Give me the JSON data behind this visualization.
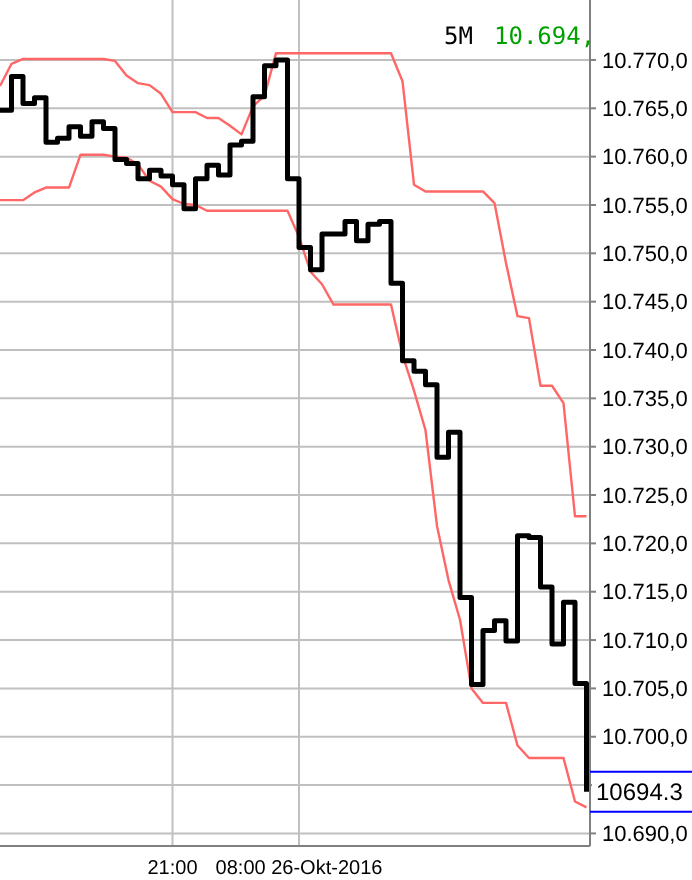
{
  "chart_data": {
    "type": "step",
    "title": "5M",
    "subtitle": "10.694,",
    "categories": [
      null,
      null,
      null,
      null,
      null,
      null,
      null,
      null,
      null,
      null,
      null,
      null,
      null,
      null,
      null,
      "21:00",
      null,
      null,
      null,
      null,
      null,
      null,
      null,
      null,
      null,
      null,
      "08:00 26-Okt-2016",
      null,
      null,
      null,
      null,
      null,
      null,
      null,
      null,
      null,
      null,
      null,
      null,
      null,
      null,
      null,
      null,
      null,
      null,
      null,
      null,
      null,
      null,
      null,
      null,
      null
    ],
    "ylim": [
      10688.7,
      10776.2
    ],
    "yticks": [
      {
        "value": 10690,
        "label": "10.690,0"
      },
      {
        "value": 10695,
        "label": null
      },
      {
        "value": 10700,
        "label": "10.700,0"
      },
      {
        "value": 10705,
        "label": "10.705,0"
      },
      {
        "value": 10710,
        "label": "10.710,0"
      },
      {
        "value": 10715,
        "label": "10.715,0"
      },
      {
        "value": 10720,
        "label": "10.720,0"
      },
      {
        "value": 10725,
        "label": "10.725,0"
      },
      {
        "value": 10730,
        "label": "10.730,0"
      },
      {
        "value": 10735,
        "label": "10.735,0"
      },
      {
        "value": 10740,
        "label": "10.740,0"
      },
      {
        "value": 10745,
        "label": "10.745,0"
      },
      {
        "value": 10750,
        "label": "10.750,0"
      },
      {
        "value": 10755,
        "label": "10.755,0"
      },
      {
        "value": 10760,
        "label": "10.760,0"
      },
      {
        "value": 10765,
        "label": "10.765,0"
      },
      {
        "value": 10770,
        "label": "10.770,0"
      }
    ],
    "grid": true,
    "annotations": [
      "10694.3"
    ],
    "series": [
      {
        "type": "line",
        "color": "#ff6666",
        "values": [
          10767.3,
          10769.6,
          10770.1,
          10770.1,
          10770.1,
          10770.1,
          10770.1,
          10770.1,
          10770.1,
          10770.1,
          10769.9,
          10768.4,
          10767.6,
          10767.4,
          10766.5,
          10764.6,
          10764.6,
          10764.6,
          10764,
          10764,
          10763.2,
          10762.3,
          10765.2,
          10766.3,
          10770.7,
          10770.7,
          10770.7,
          10770.7,
          10770.7,
          10770.7,
          10770.7,
          10770.7,
          10770.7,
          10770.7,
          10770.7,
          10767.8,
          10757.1,
          10756.4,
          10756.4,
          10756.4,
          10756.4,
          10756.4,
          10756.4,
          10755.2,
          10749,
          10743.5,
          10743.3,
          10736.3,
          10736.3,
          10734.5,
          10722.8,
          10722.8
        ]
      },
      {
        "type": "line",
        "color": "#ff6666",
        "values": [
          10755.5,
          10755.5,
          10755.5,
          10756.3,
          10756.8,
          10756.8,
          10756.8,
          10760.2,
          10760.2,
          10760.2,
          10760,
          10759.9,
          10759.2,
          10757.5,
          10756.9,
          10755.6,
          10755.1,
          10755,
          10754.4,
          10754.4,
          10754.4,
          10754.4,
          10754.4,
          10754.4,
          10754.4,
          10754.4,
          10751.7,
          10748.1,
          10746.8,
          10744.7,
          10744.7,
          10744.7,
          10744.7,
          10744.7,
          10744.7,
          10739.5,
          10735.8,
          10731.7,
          10721.8,
          10716.2,
          10712.1,
          10705,
          10703.5,
          10703.5,
          10703.5,
          10699.1,
          10697.8,
          10697.8,
          10697.8,
          10697.8,
          10693.3,
          10692.7
        ]
      },
      {
        "type": "step",
        "color": "#000000",
        "values": [
          10764.8,
          10768.3,
          10765.5,
          10766.1,
          10761.5,
          10761.9,
          10763.1,
          10762.1,
          10763.6,
          10762.9,
          10759.7,
          10759.3,
          10757.7,
          10758.6,
          10758,
          10757.1,
          10754.6,
          10757.7,
          10759.1,
          10758.1,
          10761.2,
          10761.6,
          10766.2,
          10769.4,
          10770,
          10757.7,
          10750.6,
          10748.3,
          10752,
          10752,
          10753.3,
          10751.3,
          10753,
          10753.3,
          10746.9,
          10738.9,
          10737.8,
          10736.4,
          10728.9,
          10731.5,
          10714.4,
          10705.4,
          10711,
          10712,
          10709.9,
          10720.8,
          10720.6,
          10715.5,
          10709.6,
          10713.9,
          10705.5,
          10694.3
        ]
      }
    ]
  }
}
